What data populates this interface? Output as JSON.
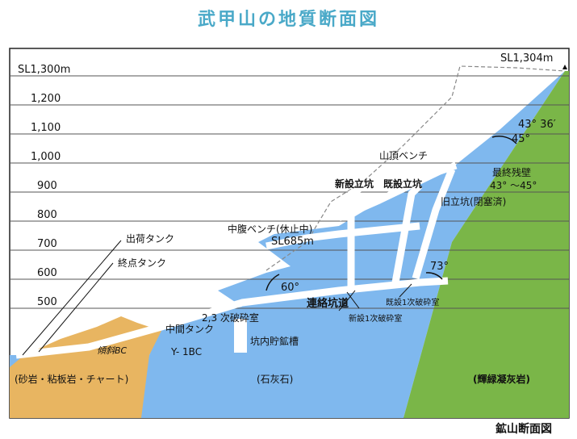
{
  "title": "武甲山の地質断面図",
  "caption": "鉱山断面図",
  "elevation_labels": [
    "SL1,300m",
    "1,200",
    "1,100",
    "1,000",
    "900",
    "800",
    "700",
    "600",
    "500"
  ],
  "peak_label": "SL1,304m",
  "labels": {
    "angle_top": "43° 36′",
    "angle_45": "45°",
    "summit_bench": "山頂ベンチ",
    "final_wall": "最終残壁",
    "final_wall_angle": "43° 〜45°",
    "new_shaft": "新設立坑",
    "existing_shaft": "既設立坑",
    "old_shaft": "旧立坑(閉塞済)",
    "mid_bench": "中腹ベンチ(休止中)",
    "mid_bench_level": "SL685m",
    "shipping_tank": "出荷タンク",
    "terminal_tank": "終点タンク",
    "angle_73": "73°",
    "angle_60": "60°",
    "connecting_tunnel": "連絡坑道",
    "existing_crusher": "既設1次破砕室",
    "new_crusher": "新設1次破砕室",
    "secondary_crusher": "2,3 次破砕室",
    "middle_tank": "中間タンク",
    "ore_bin": "坑内貯鉱槽",
    "incline_bc": "傾斜BC",
    "y1bc": "Y- 1BC",
    "rock_sandstone": "(砂岩・粘板岩・チャート)",
    "rock_limestone": "(石灰石)",
    "rock_tuff": "(輝緑凝灰岩)"
  },
  "colors": {
    "title": "#4aa9c8",
    "limestone": "#7fb8ee",
    "tuff": "#7ab648",
    "sandstone": "#e8b561"
  }
}
